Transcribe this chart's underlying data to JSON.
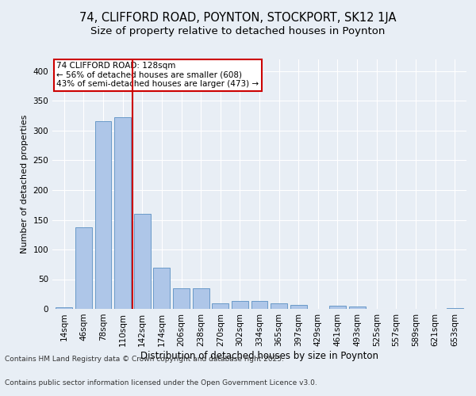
{
  "title1": "74, CLIFFORD ROAD, POYNTON, STOCKPORT, SK12 1JA",
  "title2": "Size of property relative to detached houses in Poynton",
  "xlabel": "Distribution of detached houses by size in Poynton",
  "ylabel": "Number of detached properties",
  "categories": [
    "14sqm",
    "46sqm",
    "78sqm",
    "110sqm",
    "142sqm",
    "174sqm",
    "206sqm",
    "238sqm",
    "270sqm",
    "302sqm",
    "334sqm",
    "365sqm",
    "397sqm",
    "429sqm",
    "461sqm",
    "493sqm",
    "525sqm",
    "557sqm",
    "589sqm",
    "621sqm",
    "653sqm"
  ],
  "values": [
    3,
    138,
    316,
    322,
    160,
    70,
    35,
    35,
    10,
    14,
    13,
    10,
    7,
    0,
    5,
    4,
    0,
    0,
    0,
    0,
    2
  ],
  "bar_color": "#aec6e8",
  "bar_edge_color": "#5a8fc2",
  "property_bin_index": 3,
  "vline_color": "#cc0000",
  "annotation_text": "74 CLIFFORD ROAD: 128sqm\n← 56% of detached houses are smaller (608)\n43% of semi-detached houses are larger (473) →",
  "annotation_box_color": "#ffffff",
  "annotation_box_edge_color": "#cc0000",
  "footer_line1": "Contains HM Land Registry data © Crown copyright and database right 2025.",
  "footer_line2": "Contains public sector information licensed under the Open Government Licence v3.0.",
  "ylim": [
    0,
    420
  ],
  "yticks": [
    0,
    50,
    100,
    150,
    200,
    250,
    300,
    350,
    400
  ],
  "background_color": "#e8eef5",
  "grid_color": "#ffffff",
  "title1_fontsize": 10.5,
  "title2_fontsize": 9.5,
  "xlabel_fontsize": 8.5,
  "ylabel_fontsize": 8,
  "tick_fontsize": 7.5,
  "annotation_fontsize": 7.5,
  "footer_fontsize": 6.5
}
